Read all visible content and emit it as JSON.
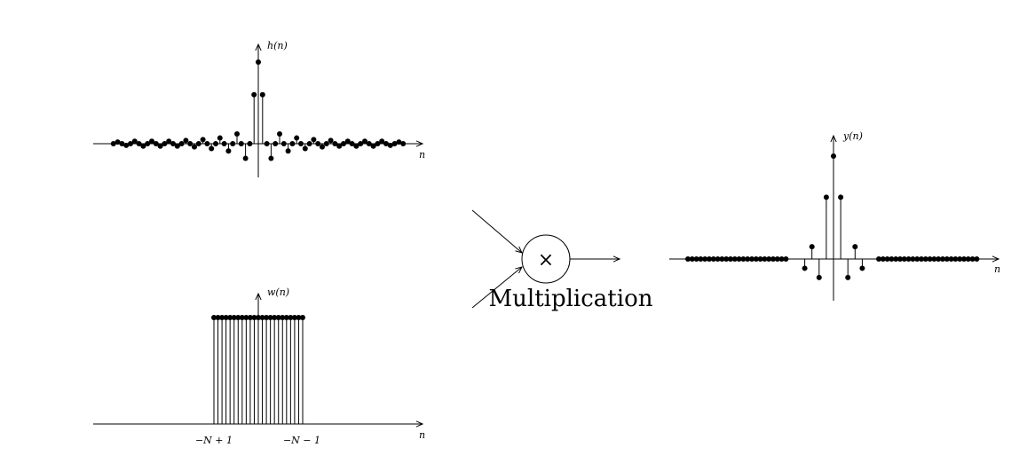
{
  "plots": {
    "h": {
      "ylabel": "h(n)",
      "xlabel": "n",
      "samples": [
        0,
        0.02,
        0,
        -0.02,
        0,
        0.03,
        0,
        -0.03,
        0,
        0.03,
        0,
        -0.03,
        0,
        0.03,
        0,
        -0.03,
        0,
        0.04,
        0,
        -0.04,
        0,
        0.05,
        0,
        -0.06,
        0,
        0.07,
        0,
        -0.09,
        0,
        0.12,
        0,
        -0.18,
        0,
        0.6,
        1,
        0.6,
        0,
        -0.18,
        0,
        0.12,
        0,
        -0.09,
        0,
        0.07,
        0,
        -0.06,
        0,
        0.05,
        0,
        -0.04,
        0,
        0.04,
        0,
        -0.03,
        0,
        0.03,
        0,
        -0.03,
        0,
        0.03,
        0,
        -0.03,
        0,
        0.03,
        0,
        -0.02,
        0,
        0.02,
        0
      ]
    },
    "w": {
      "ylabel": "w(n)",
      "xlabel": "n",
      "count": 23,
      "tick_left": "−N + 1",
      "tick_right": "−N − 1"
    },
    "y": {
      "ylabel": "y(n)",
      "xlabel": "n",
      "samples_left_zero": 24,
      "samples_right_zero": 24,
      "center": [
        -0.09,
        0.12,
        -0.18,
        0.6,
        1,
        0.6,
        -0.18,
        0.12,
        -0.09
      ]
    }
  },
  "multiplier": {
    "symbol": "×",
    "label": "Multiplication"
  }
}
